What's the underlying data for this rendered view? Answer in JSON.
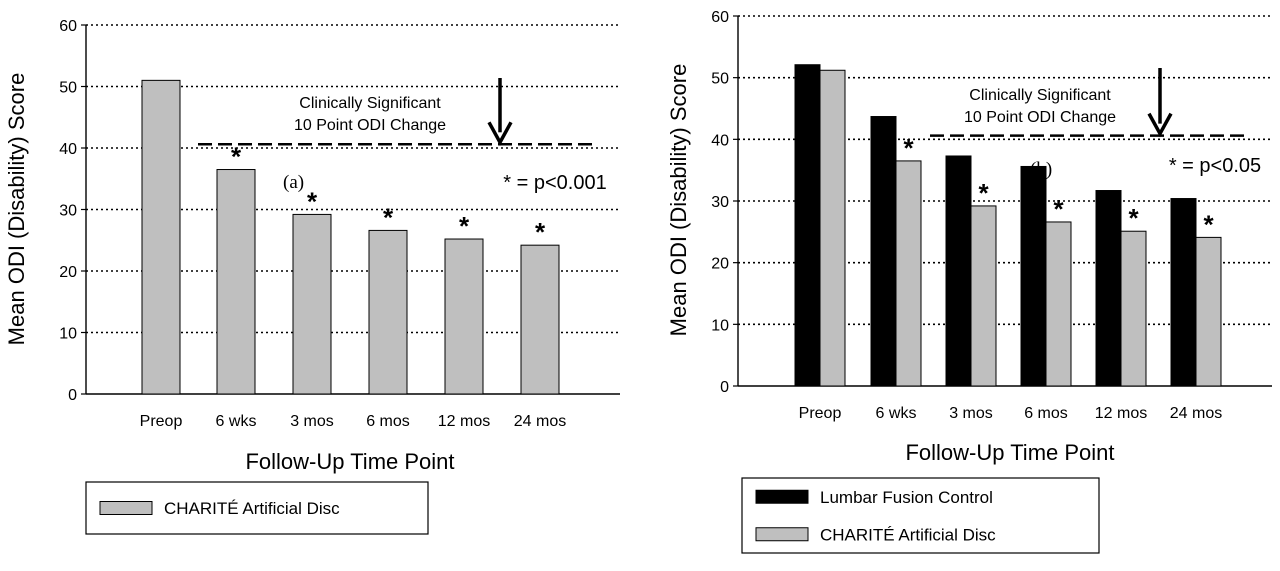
{
  "figure": {
    "charts": [
      {
        "type": "bar",
        "panel_label": "(a)",
        "title": "",
        "xlabel": "Follow-Up Time Point",
        "ylabel": "Mean ODI (Disability) Score",
        "categories": [
          "Preop",
          "6 wks",
          "3 mos",
          "6 mos",
          "12 mos",
          "24 mos"
        ],
        "ylim": [
          0,
          60
        ],
        "yticks": [
          0,
          10,
          20,
          30,
          40,
          50,
          60
        ],
        "grid": "horizontal dotted",
        "series": [
          {
            "name": "CHARITÉ Artificial Disc",
            "color": "#bfbfbf",
            "values": [
              51,
              36.5,
              29.2,
              26.6,
              25.2,
              24.2
            ]
          }
        ],
        "significance_marker": "*",
        "significant_categories": [
          false,
          true,
          true,
          true,
          true,
          true
        ],
        "significance_note": "* = p<0.001",
        "threshold": {
          "value": 40.6,
          "label_line1": "Clinically Significant",
          "label_line2": "10 Point ODI Change"
        },
        "legend_placement": "bottom-left"
      },
      {
        "type": "bar",
        "panel_label": "(b)",
        "title": "",
        "xlabel": "Follow-Up Time Point",
        "ylabel": "Mean ODI (Disability) Score",
        "categories": [
          "Preop",
          "6 wks",
          "3 mos",
          "6 mos",
          "12 mos",
          "24 mos"
        ],
        "ylim": [
          0,
          60
        ],
        "yticks": [
          0,
          10,
          20,
          30,
          40,
          50,
          60
        ],
        "grid": "horizontal dotted",
        "series": [
          {
            "name": "Lumbar Fusion Control",
            "color": "#000000",
            "values": [
              52.1,
              43.7,
              37.3,
              35.6,
              31.7,
              30.4
            ]
          },
          {
            "name": "CHARITÉ Artificial Disc",
            "color": "#bfbfbf",
            "values": [
              51.2,
              36.5,
              29.2,
              26.6,
              25.1,
              24.1
            ]
          }
        ],
        "significance_marker": "*",
        "significant_categories": [
          false,
          true,
          true,
          true,
          true,
          true
        ],
        "significance_note": "* = p<0.05",
        "threshold": {
          "value": 40.6,
          "label_line1": "Clinically Significant",
          "label_line2": "10 Point ODI Change"
        },
        "legend_placement": "bottom-left"
      }
    ]
  },
  "colors": {
    "axis": "#000000",
    "grid": "#000000",
    "background": "#ffffff"
  }
}
